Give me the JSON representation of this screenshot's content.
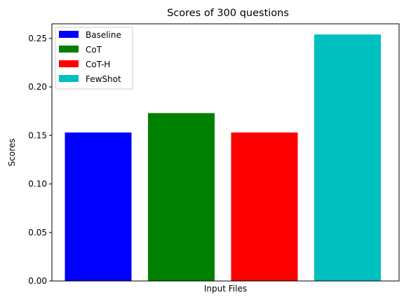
{
  "chart_data": {
    "type": "bar",
    "title": "Scores of 300 questions",
    "xlabel": "Input Files",
    "ylabel": "Scores",
    "ylim": [
      0,
      0.265
    ],
    "yticks": [
      "0.00",
      "0.05",
      "0.10",
      "0.15",
      "0.20",
      "0.25"
    ],
    "ytick_values": [
      0.0,
      0.05,
      0.1,
      0.15,
      0.2,
      0.25
    ],
    "grid": false,
    "legend_position": "top-left",
    "series": [
      {
        "name": "Baseline",
        "value": 0.153,
        "color": "#0000ff"
      },
      {
        "name": "CoT",
        "value": 0.173,
        "color": "#008000"
      },
      {
        "name": "CoT-H",
        "value": 0.153,
        "color": "#ff0000"
      },
      {
        "name": "FewShot",
        "value": 0.254,
        "color": "#00bfbf"
      }
    ]
  }
}
